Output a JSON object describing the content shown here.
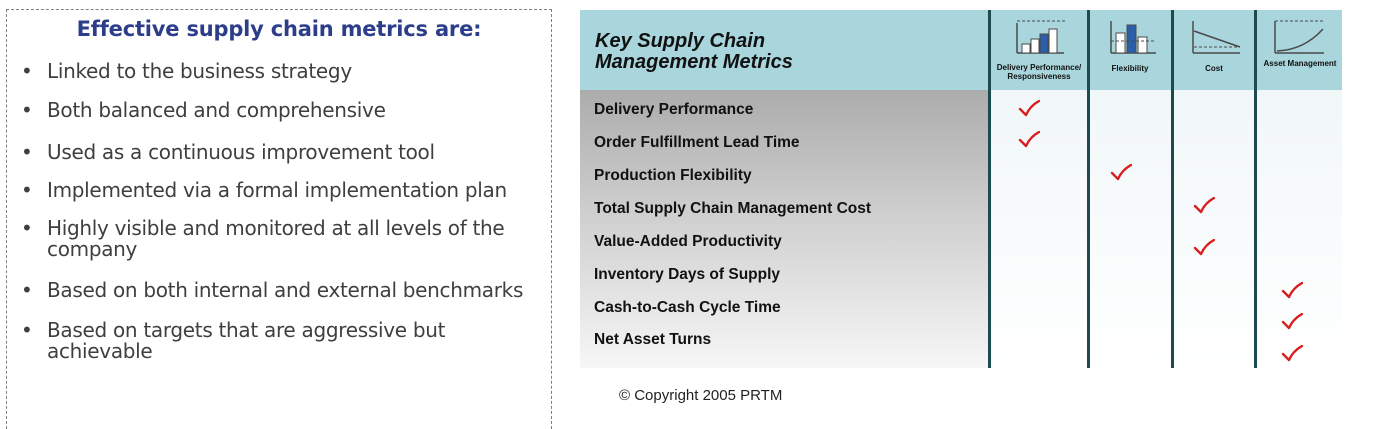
{
  "left": {
    "title": "Effective supply chain metrics are:",
    "bullet_symbol": "•",
    "bullets": [
      "Linked to the business strategy",
      "Both balanced and comprehensive",
      "Used as a continuous improvement tool",
      "Implemented via a formal implementation plan",
      "Highly visible and monitored at all levels of the company",
      "Based on both internal and external benchmarks",
      "Based on targets that are aggressive but achievable"
    ]
  },
  "table": {
    "title": "Key Supply Chain Management Metrics",
    "columns": [
      {
        "label": "Delivery Performance/ Responsiveness",
        "icon": "bar-chart-rising-icon"
      },
      {
        "label": "Flexibility",
        "icon": "bar-chart-flex-icon"
      },
      {
        "label": "Cost",
        "icon": "line-declining-icon"
      },
      {
        "label": "Asset Management",
        "icon": "curve-rising-icon"
      }
    ],
    "rows": [
      "Delivery Performance",
      "Order Fulfillment Lead Time",
      "Production Flexibility",
      "Total Supply Chain Management Cost",
      "Value-Added Productivity",
      "Inventory Days of Supply",
      "Cash-to-Cash Cycle Time",
      "Net Asset Turns"
    ],
    "checks": [
      {
        "row": 0,
        "column": 0
      },
      {
        "row": 1,
        "column": 0
      },
      {
        "row": 2,
        "column": 1
      },
      {
        "row": 3,
        "column": 2
      },
      {
        "row": 4,
        "column": 2
      },
      {
        "row": 5,
        "column": 3
      },
      {
        "row": 6,
        "column": 3
      },
      {
        "row": 7,
        "column": 3
      }
    ],
    "check_color": "#d81e1e",
    "header_color": "#a9d5dc",
    "icon_accent_color": "#2b5fa8",
    "copyright": "© Copyright 2005 PRTM"
  }
}
